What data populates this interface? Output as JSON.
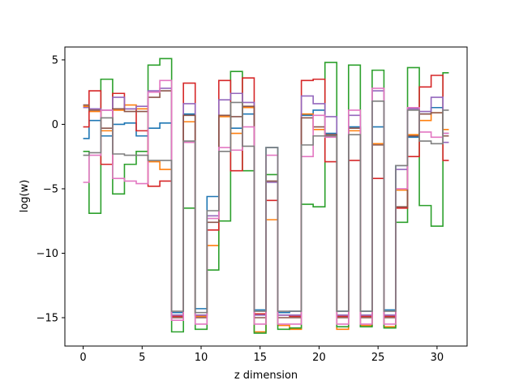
{
  "chart_data": {
    "type": "line",
    "step": "mid",
    "title": "",
    "xlabel": "z dimension",
    "ylabel": "log(w)",
    "xlim": [
      -1.55,
      32.55
    ],
    "ylim": [
      -17.2,
      6.0
    ],
    "xticks": [
      0,
      5,
      10,
      15,
      20,
      25,
      30
    ],
    "yticks": [
      -15,
      -10,
      -5,
      0,
      5
    ],
    "ytick_labels": [
      "−15",
      "−10",
      "−5",
      "0",
      "5"
    ],
    "x": [
      0,
      1,
      2,
      3,
      4,
      5,
      6,
      7,
      8,
      9,
      10,
      11,
      12,
      13,
      14,
      15,
      16,
      17,
      18,
      19,
      20,
      21,
      22,
      23,
      24,
      25,
      26,
      27,
      28,
      29,
      30,
      31
    ],
    "series": [
      {
        "color": "#1f77b4",
        "values": [
          -1.1,
          0.3,
          -0.9,
          0.0,
          0.1,
          -0.9,
          -0.3,
          0.1,
          -14.6,
          0.8,
          -14.3,
          -5.6,
          0.7,
          -0.3,
          0.8,
          -14.4,
          -1.8,
          -14.6,
          -14.5,
          0.7,
          1.1,
          -0.7,
          -14.5,
          -0.2,
          -14.5,
          -0.2,
          -14.4,
          -3.2,
          -1.0,
          0.8,
          1.3,
          -0.7
        ]
      },
      {
        "color": "#ff7f0e",
        "values": [
          1.4,
          1.0,
          -0.5,
          1.1,
          1.5,
          1.2,
          -2.9,
          -3.5,
          -14.8,
          0.2,
          -14.9,
          -9.4,
          0.6,
          -0.7,
          1.3,
          -16.1,
          -7.4,
          -15.6,
          -15.9,
          0.8,
          -0.4,
          -0.9,
          -15.9,
          -0.5,
          -15.6,
          -1.5,
          -15.7,
          -5.1,
          -0.8,
          0.3,
          0.9,
          -0.4
        ]
      },
      {
        "color": "#2ca02c",
        "values": [
          -2.1,
          -6.9,
          3.5,
          -5.4,
          -3.1,
          -2.1,
          4.6,
          5.1,
          -16.1,
          -6.5,
          -15.9,
          -11.3,
          -7.5,
          4.1,
          -3.6,
          -16.2,
          -3.9,
          -15.9,
          -15.8,
          -6.2,
          -6.4,
          4.8,
          -15.7,
          4.6,
          -15.7,
          4.2,
          -15.8,
          -7.6,
          4.4,
          -6.3,
          -7.9,
          4.0
        ]
      },
      {
        "color": "#d62728",
        "values": [
          -0.2,
          2.6,
          -3.1,
          2.4,
          1.2,
          -0.5,
          -4.8,
          -4.4,
          -14.9,
          3.2,
          -14.8,
          -8.2,
          3.4,
          -3.6,
          3.6,
          -14.7,
          -5.9,
          -14.8,
          -14.9,
          3.4,
          3.5,
          -2.9,
          -14.9,
          -2.8,
          -14.9,
          -4.2,
          -14.9,
          -6.5,
          -2.5,
          2.9,
          3.8,
          -2.8
        ]
      },
      {
        "color": "#9467bd",
        "values": [
          1.3,
          1.2,
          1.1,
          2.1,
          1.2,
          1.4,
          2.6,
          2.8,
          -14.8,
          1.6,
          -14.8,
          -7.1,
          1.9,
          2.4,
          1.7,
          -14.8,
          -4.5,
          -14.8,
          -14.8,
          2.2,
          1.6,
          0.6,
          -14.8,
          0.7,
          -14.8,
          2.6,
          -14.8,
          -3.5,
          1.2,
          1.0,
          2.1,
          -1.4
        ]
      },
      {
        "color": "#8c564b",
        "values": [
          1.5,
          1.1,
          -0.3,
          1.2,
          1.0,
          1.0,
          2.1,
          2.6,
          -15.0,
          0.7,
          -15.0,
          -7.6,
          0.7,
          0.6,
          1.4,
          -15.0,
          -4.4,
          -15.0,
          -15.0,
          0.5,
          -0.2,
          -0.8,
          -15.0,
          -0.3,
          -15.0,
          -1.6,
          -15.0,
          -6.4,
          -0.9,
          0.8,
          0.9,
          -0.9
        ]
      },
      {
        "color": "#e377c2",
        "values": [
          -4.5,
          -2.4,
          1.1,
          -4.2,
          -4.4,
          -4.6,
          2.5,
          3.4,
          -15.2,
          -1.4,
          -15.5,
          -7.3,
          -1.8,
          -2.0,
          -0.2,
          -15.5,
          -2.4,
          -15.5,
          -15.5,
          -2.5,
          0.7,
          -1.0,
          -15.5,
          1.1,
          -15.5,
          2.8,
          -15.5,
          -5.0,
          1.3,
          -0.6,
          -1.0,
          -0.7
        ]
      },
      {
        "color": "#7f7f7f",
        "values": [
          -2.4,
          -2.2,
          0.5,
          -2.3,
          -2.4,
          -2.4,
          -2.8,
          -2.8,
          -14.5,
          -1.3,
          -14.6,
          -6.7,
          -2.1,
          1.7,
          -1.7,
          -14.5,
          -1.8,
          -14.5,
          -14.5,
          -1.6,
          -0.9,
          -0.9,
          -14.5,
          -0.8,
          -14.5,
          1.8,
          -14.5,
          -3.2,
          1.1,
          -1.3,
          -1.5,
          1.1
        ]
      }
    ]
  }
}
